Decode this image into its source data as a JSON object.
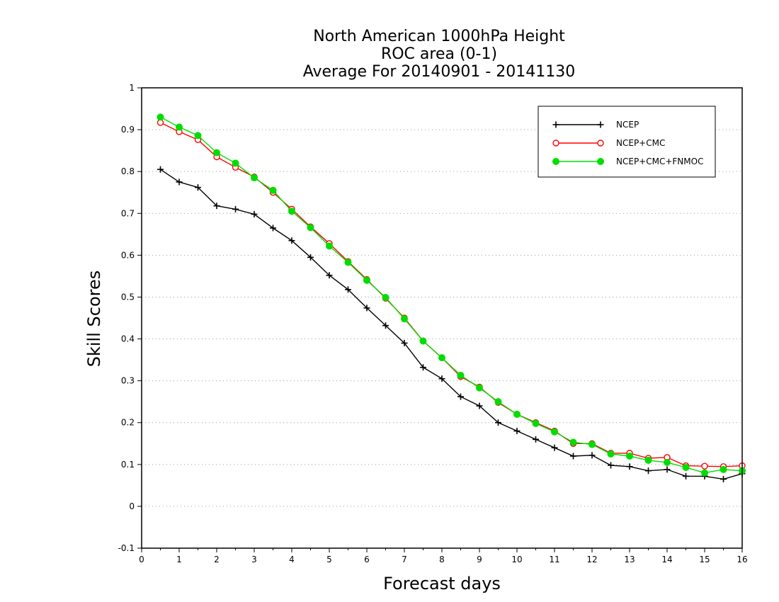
{
  "chart_data": {
    "type": "line",
    "title": [
      "North American 1000hPa Height",
      "ROC area (0-1)",
      "Average For 20140901 - 20141130"
    ],
    "xlabel": "Forecast days",
    "ylabel": "Skill Scores",
    "xlim": [
      0,
      16
    ],
    "ylim": [
      -0.1,
      1
    ],
    "xticks": [
      0,
      1,
      2,
      3,
      4,
      5,
      6,
      7,
      8,
      9,
      10,
      11,
      12,
      13,
      14,
      15,
      16
    ],
    "xtick_labels": [
      "0",
      "1",
      "2",
      "3",
      "4",
      "5",
      "6",
      "7",
      "8",
      "9",
      "10",
      "11",
      "12",
      "13",
      "14",
      "15",
      "16"
    ],
    "yticks": [
      -0.1,
      0,
      0.1,
      0.2,
      0.3,
      0.4,
      0.5,
      0.6,
      0.7,
      0.8,
      0.9,
      1
    ],
    "ytick_labels": [
      "-0.1",
      "0",
      "0.1",
      "0.2",
      "0.3",
      "0.4",
      "0.5",
      "0.6",
      "0.7",
      "0.8",
      "0.9",
      "1"
    ],
    "grid": "horizontal dotted",
    "legend_position": "top-right",
    "x": [
      0.5,
      1,
      1.5,
      2,
      2.5,
      3,
      3.5,
      4,
      4.5,
      5,
      5.5,
      6,
      6.5,
      7,
      7.5,
      8,
      8.5,
      9,
      9.5,
      10,
      10.5,
      11,
      11.5,
      12,
      12.5,
      13,
      13.5,
      14,
      14.5,
      15,
      15.5,
      16
    ],
    "series": [
      {
        "name": "NCEP",
        "color": "#000000",
        "marker": "plus",
        "values": [
          0.805,
          0.775,
          0.762,
          0.718,
          0.71,
          0.698,
          0.665,
          0.635,
          0.595,
          0.552,
          0.518,
          0.474,
          0.432,
          0.39,
          0.332,
          0.305,
          0.262,
          0.24,
          0.2,
          0.18,
          0.16,
          0.14,
          0.12,
          0.122,
          0.098,
          0.095,
          0.085,
          0.088,
          0.072,
          0.072,
          0.065,
          0.078
        ]
      },
      {
        "name": "NCEP+CMC",
        "color": "#ff0000",
        "marker": "open-circle",
        "values": [
          0.917,
          0.895,
          0.876,
          0.835,
          0.81,
          0.787,
          0.75,
          0.71,
          0.668,
          0.628,
          0.585,
          0.542,
          0.497,
          0.45,
          0.395,
          0.355,
          0.31,
          0.285,
          0.248,
          0.22,
          0.2,
          0.18,
          0.15,
          0.15,
          0.127,
          0.127,
          0.115,
          0.117,
          0.097,
          0.096,
          0.095,
          0.097
        ]
      },
      {
        "name": "NCEP+CMC+FNMOC",
        "color": "#00dd00",
        "marker": "filled-circle",
        "values": [
          0.93,
          0.906,
          0.886,
          0.845,
          0.82,
          0.785,
          0.755,
          0.705,
          0.666,
          0.622,
          0.583,
          0.54,
          0.499,
          0.448,
          0.395,
          0.355,
          0.313,
          0.283,
          0.25,
          0.22,
          0.198,
          0.178,
          0.153,
          0.148,
          0.125,
          0.12,
          0.11,
          0.105,
          0.093,
          0.08,
          0.088,
          0.085
        ]
      }
    ]
  }
}
